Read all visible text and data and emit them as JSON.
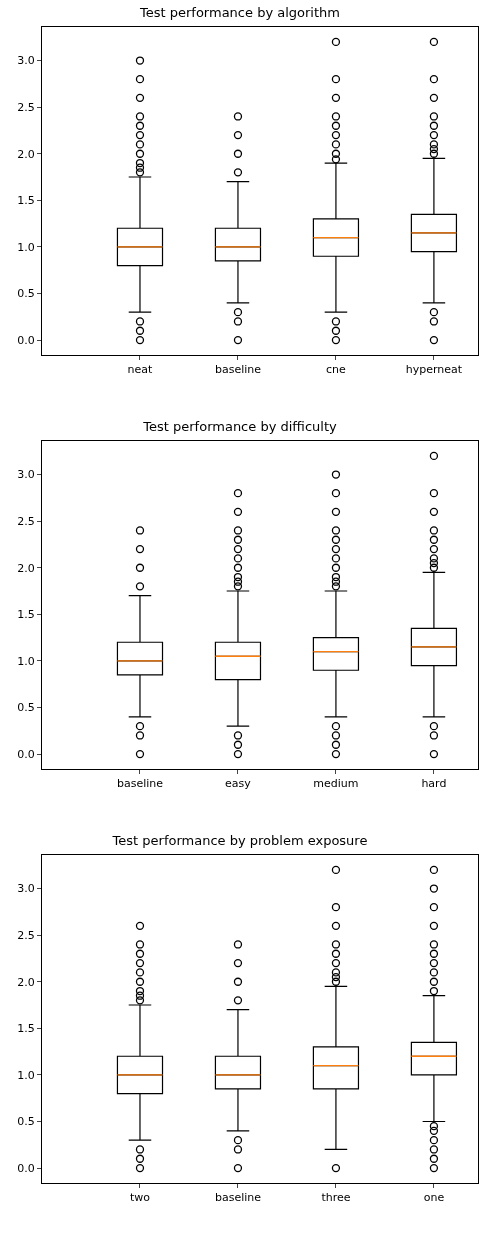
{
  "chart_data": [
    {
      "type": "box",
      "title": "Test performance by algorithm",
      "categories": [
        "neat",
        "baseline",
        "cne",
        "hyperneat"
      ],
      "ylim": [
        -0.16,
        3.36
      ],
      "yticks": [
        {
          "value": 0,
          "label": "0.0"
        },
        0.5,
        {
          "value": 1,
          "label": "1.0"
        },
        1.5,
        {
          "value": 2,
          "label": "2.0"
        },
        2.5,
        {
          "value": 3,
          "label": "3.0"
        }
      ],
      "grid": false,
      "boxes": [
        {
          "low": 0.3,
          "q1": 0.8,
          "median": 1.0,
          "q3": 1.2,
          "high": 1.75,
          "outliers": [
            0,
            0.1,
            0.2,
            1.8,
            1.85,
            1.9,
            2.0,
            2.1,
            2.2,
            2.3,
            2.4,
            2.6,
            2.8,
            3.0
          ]
        },
        {
          "low": 0.4,
          "q1": 0.85,
          "median": 1.0,
          "q3": 1.2,
          "high": 1.7,
          "outliers": [
            0,
            0.2,
            0.3,
            1.8,
            2.0,
            2.2,
            2.4
          ]
        },
        {
          "low": 0.3,
          "q1": 0.9,
          "median": 1.1,
          "q3": 1.3,
          "high": 1.9,
          "outliers": [
            0,
            0.1,
            0.2,
            1.94,
            2.0,
            2.1,
            2.2,
            2.3,
            2.4,
            2.6,
            2.8,
            3.2
          ]
        },
        {
          "low": 0.4,
          "q1": 0.95,
          "median": 1.15,
          "q3": 1.35,
          "high": 1.95,
          "outliers": [
            0,
            0.2,
            0.3,
            2.0,
            2.05,
            2.1,
            2.2,
            2.3,
            2.4,
            2.6,
            2.8,
            3.2
          ]
        }
      ]
    },
    {
      "type": "box",
      "title": "Test performance by difficulty",
      "categories": [
        "baseline",
        "easy",
        "medium",
        "hard"
      ],
      "ylim": [
        -0.16,
        3.36
      ],
      "yticks": [
        {
          "value": 0,
          "label": "0.0"
        },
        0.5,
        {
          "value": 1,
          "label": "1.0"
        },
        1.5,
        {
          "value": 2,
          "label": "2.0"
        },
        2.5,
        {
          "value": 3,
          "label": "3.0"
        }
      ],
      "grid": false,
      "boxes": [
        {
          "low": 0.4,
          "q1": 0.85,
          "median": 1.0,
          "q3": 1.2,
          "high": 1.7,
          "outliers": [
            0,
            0.2,
            0.3,
            1.8,
            2.0,
            2.2,
            2.4
          ]
        },
        {
          "low": 0.3,
          "q1": 0.8,
          "median": 1.05,
          "q3": 1.2,
          "high": 1.75,
          "outliers": [
            0,
            0.1,
            0.2,
            1.8,
            1.85,
            1.9,
            2.0,
            2.1,
            2.2,
            2.3,
            2.4,
            2.6,
            2.8
          ]
        },
        {
          "low": 0.4,
          "q1": 0.9,
          "median": 1.1,
          "q3": 1.25,
          "high": 1.75,
          "outliers": [
            0,
            0.1,
            0.2,
            0.3,
            1.8,
            1.85,
            1.9,
            2.0,
            2.1,
            2.2,
            2.3,
            2.4,
            2.6,
            2.8,
            3.0
          ]
        },
        {
          "low": 0.4,
          "q1": 0.95,
          "median": 1.15,
          "q3": 1.35,
          "high": 1.95,
          "outliers": [
            0,
            0.2,
            0.3,
            2.0,
            2.05,
            2.1,
            2.2,
            2.3,
            2.4,
            2.6,
            2.8,
            3.2
          ]
        }
      ]
    },
    {
      "type": "box",
      "title": "Test performance by problem exposure",
      "categories": [
        "two",
        "baseline",
        "three",
        "one"
      ],
      "ylim": [
        -0.16,
        3.36
      ],
      "yticks": [
        {
          "value": 0,
          "label": "0.0"
        },
        0.5,
        {
          "value": 1,
          "label": "1.0"
        },
        1.5,
        {
          "value": 2,
          "label": "2.0"
        },
        2.5,
        {
          "value": 3,
          "label": "3.0"
        }
      ],
      "grid": false,
      "boxes": [
        {
          "low": 0.3,
          "q1": 0.8,
          "median": 1.0,
          "q3": 1.2,
          "high": 1.75,
          "outliers": [
            0,
            0.1,
            0.2,
            1.8,
            1.85,
            1.9,
            2.0,
            2.1,
            2.2,
            2.3,
            2.4,
            2.6
          ]
        },
        {
          "low": 0.4,
          "q1": 0.85,
          "median": 1.0,
          "q3": 1.2,
          "high": 1.7,
          "outliers": [
            0,
            0.2,
            0.3,
            1.8,
            2.0,
            2.2,
            2.4
          ]
        },
        {
          "low": 0.2,
          "q1": 0.85,
          "median": 1.1,
          "q3": 1.3,
          "high": 1.95,
          "outliers": [
            0,
            2.0,
            2.05,
            2.1,
            2.2,
            2.3,
            2.4,
            2.6,
            2.8,
            3.2
          ]
        },
        {
          "low": 0.5,
          "q1": 1.0,
          "median": 1.2,
          "q3": 1.35,
          "high": 1.85,
          "outliers": [
            0,
            0.1,
            0.2,
            0.3,
            0.4,
            0.45,
            1.9,
            2.0,
            2.1,
            2.2,
            2.3,
            2.4,
            2.6,
            2.8,
            3.0,
            3.2
          ]
        }
      ]
    }
  ]
}
